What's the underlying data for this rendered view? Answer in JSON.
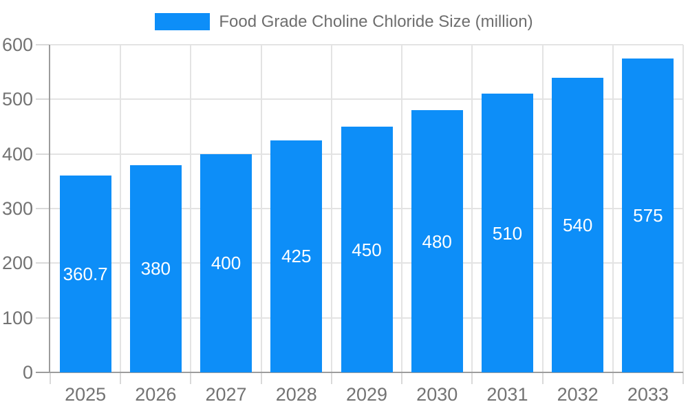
{
  "chart_data": {
    "type": "bar",
    "title": "Food Grade Choline Chloride Size (million)",
    "legend": {
      "label": "Food Grade Choline Chloride Size (million)",
      "position": "top"
    },
    "categories": [
      "2025",
      "2026",
      "2027",
      "2028",
      "2029",
      "2030",
      "2031",
      "2032",
      "2033"
    ],
    "series": [
      {
        "name": "Food Grade Choline Chloride Size (million)",
        "values": [
          360.7,
          380,
          400,
          425,
          450,
          480,
          510,
          540,
          575
        ]
      }
    ],
    "value_labels": [
      "360.7",
      "380",
      "400",
      "425",
      "450",
      "480",
      "510",
      "540",
      "575"
    ],
    "xlabel": "",
    "ylabel": "",
    "ylim": [
      0,
      600
    ],
    "yticks": [
      0,
      100,
      200,
      300,
      400,
      500,
      600
    ],
    "grid": true,
    "colors": {
      "bar": "#0d8ef8",
      "axis_text": "#737373",
      "legend_text": "#6e6e6e",
      "axis_border": "#9c9c9c",
      "gridline": "#e3e3e3",
      "tick": "#d9d9d9",
      "value_label": "#ffffff",
      "background": "#ffffff"
    }
  }
}
